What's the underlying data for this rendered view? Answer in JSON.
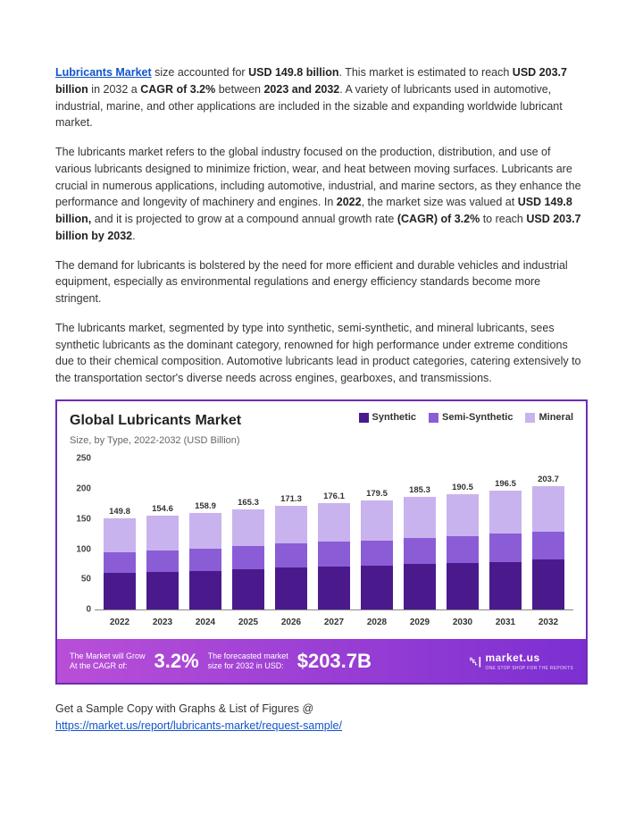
{
  "para1": {
    "link": "Lubricants Market",
    "t1": " size accounted for ",
    "b1": "USD 149.8 billion",
    "t2": ". This market is estimated to reach ",
    "b2": "USD 203.7 billion",
    "t3": " in 2032 a ",
    "b3": "CAGR of 3.2%",
    "t4": " between ",
    "b4": "2023 and 2032",
    "t5": ". A variety of lubricants used in automotive, industrial, marine, and other applications are included in the sizable and expanding worldwide lubricant market."
  },
  "para2": {
    "t1": "The lubricants market refers to the global industry focused on the production, distribution, and use of various lubricants designed to minimize friction, wear, and heat between moving surfaces. Lubricants are crucial in numerous applications, including automotive, industrial, and marine sectors, as they enhance the performance and longevity of machinery and engines. In ",
    "b1": "2022",
    "t2": ", the market size was valued at ",
    "b2": "USD 149.8 billion,",
    "t3": " and it is projected to grow at a compound annual growth rate ",
    "b3": "(CAGR) of 3.2%",
    "t4": " to reach ",
    "b4": "USD 203.7 billion by 2032",
    "t5": "."
  },
  "para3": "The demand for lubricants is bolstered by the need for more efficient and durable vehicles and industrial equipment, especially as environmental regulations and energy efficiency standards become more stringent.",
  "para4": "The lubricants market, segmented by type into synthetic, semi-synthetic, and mineral lubricants, sees synthetic lubricants as the dominant category, renowned for high performance under extreme conditions due to their chemical composition. Automotive lubricants lead in product categories, catering extensively to the transportation sector's diverse needs across engines, gearboxes, and transmissions.",
  "chart": {
    "title": "Global Lubricants Market",
    "subtitle": "Size, by Type, 2022-2032 (USD Billion)",
    "legend": [
      {
        "label": "Synthetic",
        "color": "#4a1a8c"
      },
      {
        "label": "Semi-Synthetic",
        "color": "#8a5dd6"
      },
      {
        "label": "Mineral",
        "color": "#c9b3ee"
      }
    ],
    "ymax": 250,
    "yticks": [
      0,
      50,
      100,
      150,
      200,
      250
    ],
    "years": [
      "2022",
      "2023",
      "2024",
      "2025",
      "2026",
      "2027",
      "2028",
      "2029",
      "2030",
      "2031",
      "2032"
    ],
    "totals": [
      "149.8",
      "154.6",
      "158.9",
      "165.3",
      "171.3",
      "176.1",
      "179.5",
      "185.3",
      "190.5",
      "196.5",
      "203.7"
    ],
    "stacks": [
      {
        "syn": 60,
        "semi": 35,
        "min": 54.8
      },
      {
        "syn": 62,
        "semi": 36,
        "min": 56.6
      },
      {
        "syn": 64,
        "semi": 37,
        "min": 57.9
      },
      {
        "syn": 66,
        "semi": 39,
        "min": 60.3
      },
      {
        "syn": 69,
        "semi": 40,
        "min": 62.3
      },
      {
        "syn": 71,
        "semi": 41,
        "min": 64.1
      },
      {
        "syn": 72,
        "semi": 42,
        "min": 65.5
      },
      {
        "syn": 75,
        "semi": 43,
        "min": 67.3
      },
      {
        "syn": 77,
        "semi": 44,
        "min": 69.5
      },
      {
        "syn": 79,
        "semi": 46,
        "min": 71.5
      },
      {
        "syn": 82,
        "semi": 47,
        "min": 74.7
      }
    ],
    "colors": {
      "syn": "#4a1a8c",
      "semi": "#8a5dd6",
      "min": "#c9b3ee"
    },
    "banner": {
      "bg": "linear-gradient(90deg,#b94fd8 0%,#7c2fd1 100%)",
      "grow_label": "The Market will Grow\nAt the CAGR of:",
      "cagr": "3.2%",
      "forecast_label": "The forecasted market\nsize for 2032 in USD:",
      "forecast": "$203.7B",
      "brand": "market.us",
      "brand_sub": "ONE STOP SHOP FOR THE REPORTS"
    }
  },
  "footer": {
    "text": "Get a Sample Copy with Graphs & List of Figures @",
    "url": "https://market.us/report/lubricants-market/request-sample/"
  }
}
